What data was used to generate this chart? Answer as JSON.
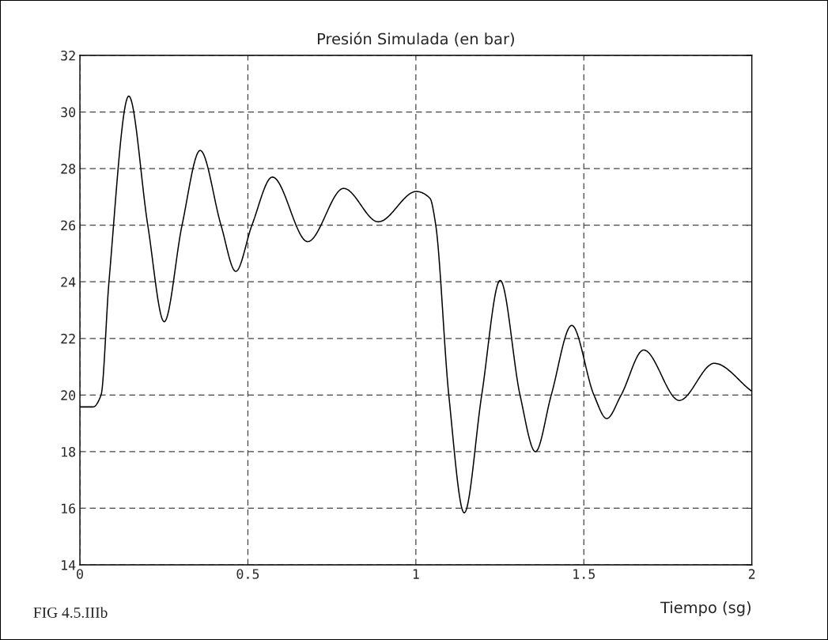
{
  "chart_data": {
    "type": "line",
    "title": "Presión Simulada (en bar)",
    "xlabel": "Tiempo (sg)",
    "annotations": [
      "FIG 4.5.IIIb"
    ],
    "series": [
      {
        "color": "#000000",
        "x": [
          0,
          0.039,
          0.063,
          0.0865,
          0.1455,
          0.202,
          0.251,
          0.304,
          0.358,
          0.42,
          0.464,
          0.512,
          0.573,
          0.678,
          0.785,
          0.888,
          1.001,
          1.042,
          1.059,
          1.098,
          1.144,
          1.196,
          1.251,
          1.31,
          1.356,
          1.403,
          1.464,
          1.53,
          1.568,
          1.611,
          1.678,
          1.784,
          1.888,
          1.998
        ],
        "values": [
          19.58,
          19.58,
          20,
          24,
          30.56,
          26,
          22.59,
          26,
          28.64,
          26,
          24.37,
          26,
          27.7,
          25.42,
          27.3,
          26.12,
          27.19,
          26.95,
          26.02,
          20,
          15.84,
          20,
          24.05,
          20,
          18.0,
          20,
          22.46,
          20,
          19.17,
          20,
          21.59,
          19.81,
          21.12,
          20.15
        ]
      }
    ],
    "xlim": [
      0,
      2
    ],
    "ylim": [
      14,
      32
    ],
    "xticks": [
      0,
      0.5,
      1,
      1.5,
      2
    ],
    "yticks": [
      14,
      16,
      18,
      20,
      22,
      24,
      26,
      28,
      30,
      32
    ],
    "grid": true,
    "legend": false,
    "marker": "none",
    "line_style": "solid"
  }
}
